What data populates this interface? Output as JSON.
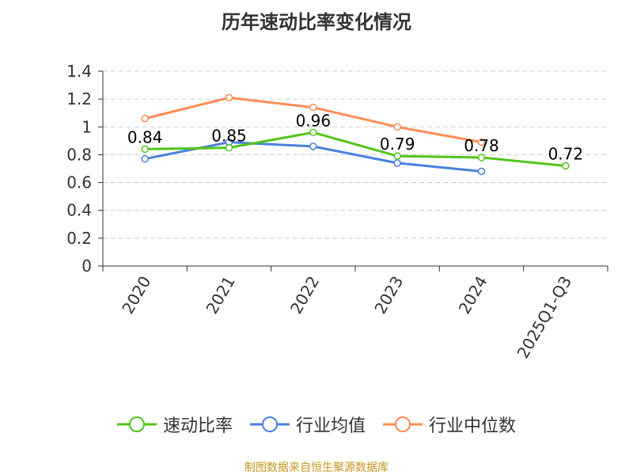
{
  "chart_data": {
    "type": "line",
    "title": "历年速动比率变化情况",
    "categories": [
      "2020",
      "2021",
      "2022",
      "2023",
      "2024",
      "2025Q1-Q3"
    ],
    "ylim": [
      0,
      1.4
    ],
    "yticks": [
      "0",
      "0.2",
      "0.4",
      "0.6",
      "0.8",
      "1",
      "1.2",
      "1.4"
    ],
    "grid": true,
    "legend_position": "bottom",
    "series": [
      {
        "name": "速动比率",
        "color": "#52c41a",
        "values": [
          0.84,
          0.85,
          0.96,
          0.79,
          0.78,
          0.72
        ],
        "labels": [
          "0.84",
          "0.85",
          "0.96",
          "0.79",
          "0.78",
          "0.72"
        ]
      },
      {
        "name": "行业均值",
        "color": "#4a80e0",
        "values": [
          0.77,
          0.89,
          0.86,
          0.74,
          0.68,
          null
        ]
      },
      {
        "name": "行业中位数",
        "color": "#ff8c55",
        "values": [
          1.06,
          1.21,
          1.14,
          1.0,
          0.89,
          null
        ]
      }
    ]
  },
  "source": "制图数据来自恒生聚源数据库"
}
